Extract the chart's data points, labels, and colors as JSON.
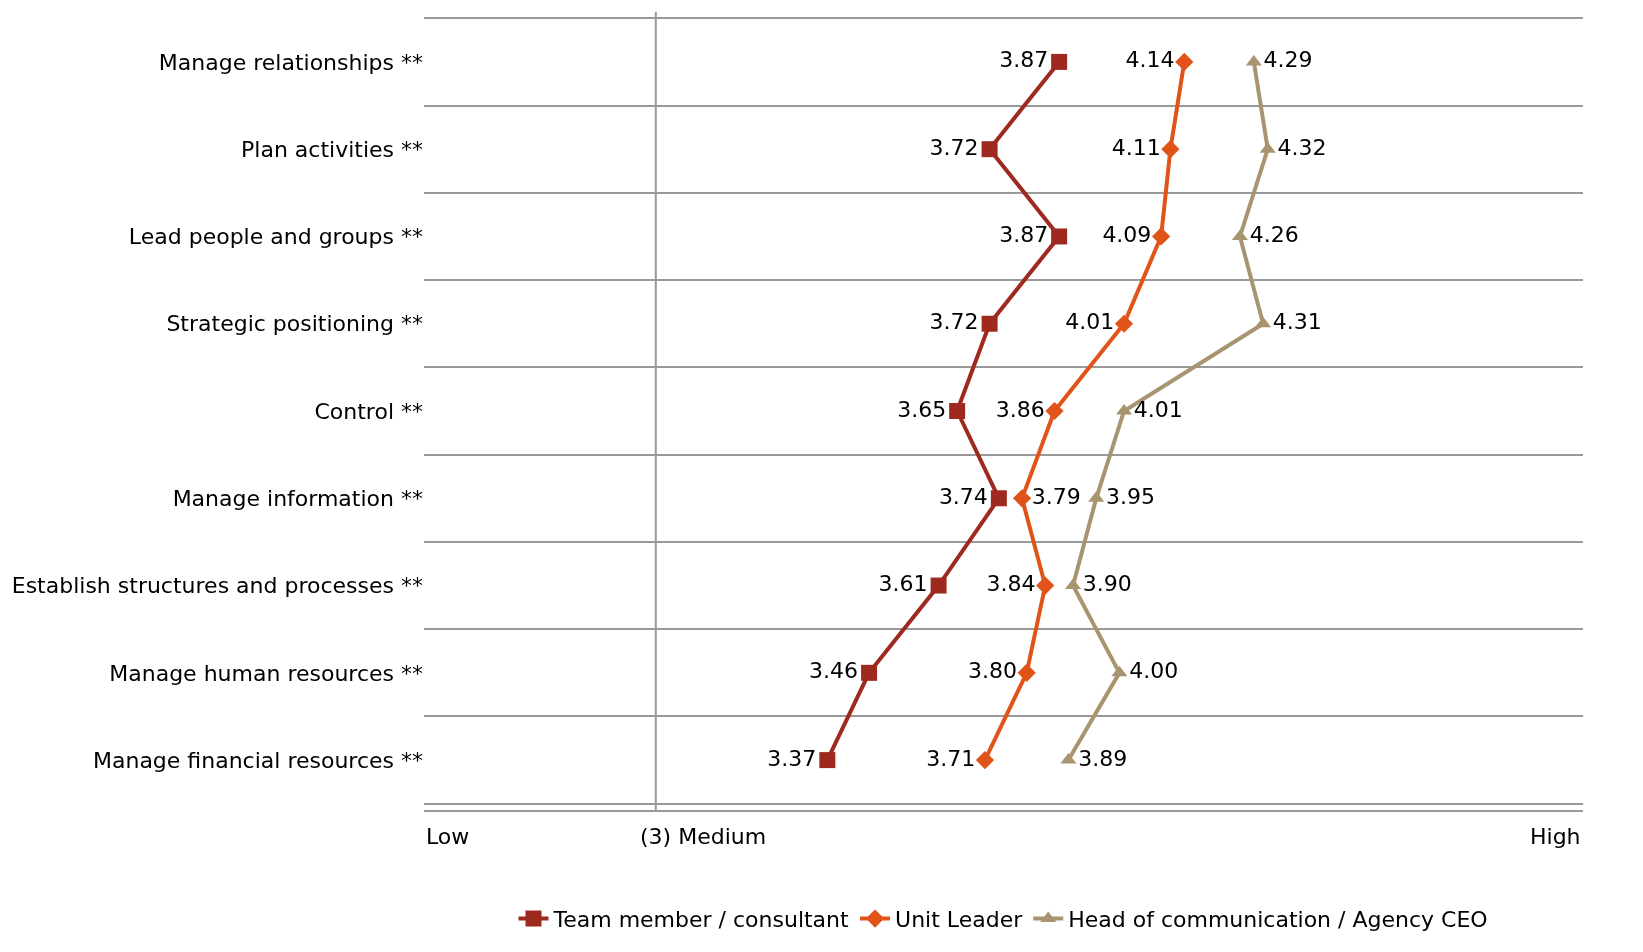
{
  "chart_data": {
    "type": "line",
    "orientation": "horizontal",
    "categories": [
      "Manage relationships **",
      "Plan activities **",
      "Lead people and groups **",
      "Strategic positioning **",
      "Control **",
      "Manage information **",
      "Establish structures and processes **",
      "Manage human resources **",
      "Manage financial resources **"
    ],
    "series": [
      {
        "name": "Team member / consultant",
        "color": "#9e2a1f",
        "marker": "square",
        "values": [
          3.87,
          3.72,
          3.87,
          3.72,
          3.65,
          3.74,
          3.61,
          3.46,
          3.37
        ],
        "value_labels": [
          "3.87",
          "3.72",
          "3.87",
          "3.72",
          "3.65",
          "3.74",
          "3.61",
          "3.46",
          "3.37"
        ]
      },
      {
        "name": "Unit Leader",
        "color": "#e0541a",
        "marker": "diamond",
        "values": [
          4.14,
          4.11,
          4.09,
          4.01,
          3.86,
          3.79,
          3.84,
          3.8,
          3.71
        ],
        "value_labels": [
          "4.14",
          "4.11",
          "4.09",
          "4.01",
          "3.86",
          "3.79",
          "3.84",
          "3.80",
          "3.71"
        ]
      },
      {
        "name": "Head of communication / Agency CEO",
        "color": "#a89570",
        "marker": "triangle",
        "values": [
          4.29,
          4.32,
          4.26,
          4.31,
          4.01,
          3.95,
          3.9,
          4.0,
          3.89
        ],
        "value_labels": [
          "4.29",
          "4.32",
          "4.26",
          "4.31",
          "4.01",
          "3.95",
          "3.90",
          "4.00",
          "3.89"
        ]
      }
    ],
    "xlim": [
      2.5,
      5
    ],
    "tick_labels": "y",
    "annotations": [
      "Low",
      "High"
    ],
    "ref_lines": [
      {
        "axis": "x",
        "value": 3,
        "color": "#999999",
        "label": "(3) Medium"
      }
    ],
    "grid": "y",
    "legend": "bottom"
  }
}
